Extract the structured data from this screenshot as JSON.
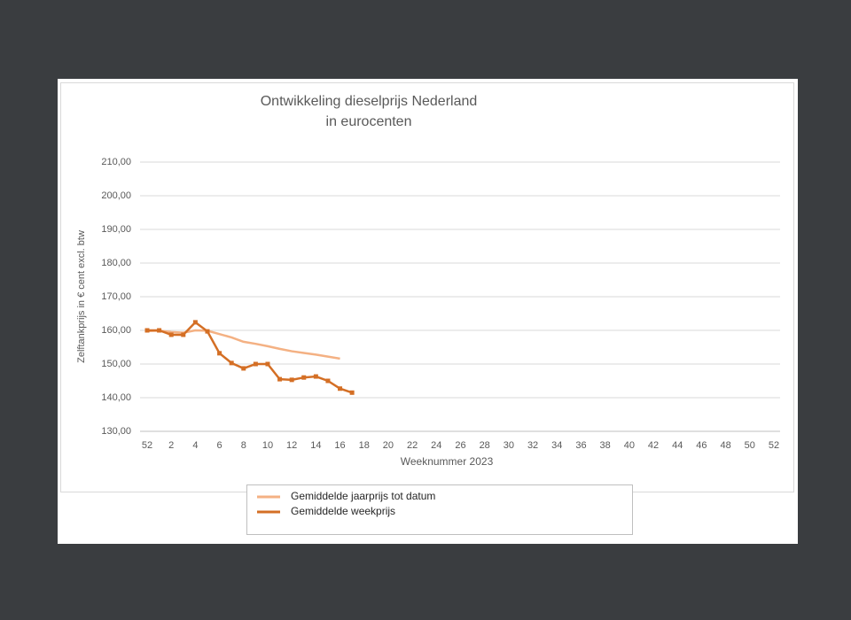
{
  "chart_data": {
    "type": "line",
    "title": [
      "Ontwikkeling dieselprijs Nederland",
      "in eurocenten"
    ],
    "y_label": "Zelftankprijs in € cent excl. btw",
    "x_label": "Weeknummer 2023",
    "categories": [
      "52",
      null,
      "2",
      null,
      "4",
      null,
      "6",
      null,
      "8",
      null,
      "10",
      null,
      "12",
      null,
      "14",
      null,
      "16",
      null,
      "18",
      null,
      "20",
      null,
      "22",
      null,
      "24",
      null,
      "26",
      null,
      "28",
      null,
      "30",
      null,
      "32",
      null,
      "34",
      null,
      "36",
      null,
      "38",
      null,
      "40",
      null,
      "42",
      null,
      "44",
      null,
      "46",
      null,
      "48",
      null,
      "50",
      null,
      "52"
    ],
    "series": [
      {
        "name": "Gemiddelde jaarprijs tot datum",
        "color": "#f4b183",
        "marker": "none",
        "values": [
          159.8,
          159.9,
          159.5,
          159.3,
          160.0,
          159.9,
          158.9,
          157.9,
          156.6,
          156.0,
          155.3,
          154.5,
          153.8,
          153.3,
          152.8,
          152.2,
          151.6,
          null,
          null,
          null,
          null,
          null,
          null,
          null,
          null,
          null,
          null,
          null,
          null,
          null,
          null,
          null,
          null,
          null,
          null,
          null,
          null,
          null,
          null,
          null,
          null,
          null,
          null,
          null,
          null,
          null,
          null,
          null,
          null,
          null,
          null,
          null,
          null
        ]
      },
      {
        "name": "Gemiddelde weekprijs",
        "color": "#d46f25",
        "marker": "square",
        "values": [
          160.0,
          160.0,
          158.7,
          158.7,
          162.4,
          159.7,
          153.2,
          150.3,
          148.7,
          150.0,
          150.0,
          145.5,
          145.3,
          146.0,
          146.3,
          145.0,
          142.7,
          141.5,
          null,
          null,
          null,
          null,
          null,
          null,
          null,
          null,
          null,
          null,
          null,
          null,
          null,
          null,
          null,
          null,
          null,
          null,
          null,
          null,
          null,
          null,
          null,
          null,
          null,
          null,
          null,
          null,
          null,
          null,
          null,
          null,
          null,
          null,
          null
        ]
      }
    ],
    "ylim": [
      130,
      210
    ],
    "yticks": [
      {
        "value": 130,
        "label": "130,00"
      },
      {
        "value": 140,
        "label": "140,00"
      },
      {
        "value": 150,
        "label": "150,00"
      },
      {
        "value": 160,
        "label": "160,00"
      },
      {
        "value": 170,
        "label": "170,00"
      },
      {
        "value": 180,
        "label": "180,00"
      },
      {
        "value": 190,
        "label": "190,00"
      },
      {
        "value": 200,
        "label": "200,00"
      },
      {
        "value": 210,
        "label": "210,00"
      }
    ],
    "grid": true,
    "legend": "bottom"
  }
}
